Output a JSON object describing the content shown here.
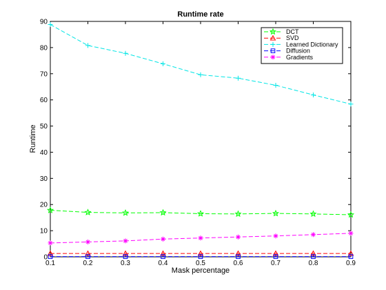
{
  "chart_data": {
    "type": "line",
    "title": "Runtime rate",
    "xlabel": "Mask percentage",
    "ylabel": "Runtime",
    "xlim": [
      0.1,
      0.9
    ],
    "ylim": [
      0,
      90
    ],
    "xticks": [
      "0.1",
      "0.2",
      "0.3",
      "0.4",
      "0.5",
      "0.6",
      "0.7",
      "0.8",
      "0.9"
    ],
    "yticks": [
      "0",
      "10",
      "20",
      "30",
      "40",
      "50",
      "60",
      "70",
      "80",
      "90"
    ],
    "grid": false,
    "legend_position": "top-right",
    "x": [
      0.1,
      0.2,
      0.3,
      0.4,
      0.5,
      0.6,
      0.7,
      0.8,
      0.9
    ],
    "series": [
      {
        "name": "DCT",
        "color": "#00ff00",
        "marker": "star",
        "values": [
          17.8,
          17.0,
          16.8,
          16.9,
          16.5,
          16.4,
          16.6,
          16.4,
          16.1
        ]
      },
      {
        "name": "SVD",
        "color": "#ff0000",
        "marker": "triangle",
        "values": [
          1.3,
          1.3,
          1.3,
          1.3,
          1.3,
          1.3,
          1.3,
          1.3,
          1.3
        ]
      },
      {
        "name": "Learned Dictionary",
        "color": "#00e5e5",
        "marker": "plus",
        "values": [
          88.8,
          80.8,
          77.8,
          73.8,
          69.6,
          68.3,
          65.6,
          61.9,
          58.4
        ]
      },
      {
        "name": "Diffusion",
        "color": "#0000ff",
        "marker": "square",
        "values": [
          0.1,
          0.1,
          0.1,
          0.1,
          0.1,
          0.1,
          0.1,
          0.1,
          0.1
        ]
      },
      {
        "name": "Gradients",
        "color": "#ff00ff",
        "marker": "asterisk",
        "values": [
          5.3,
          5.7,
          6.1,
          6.8,
          7.2,
          7.6,
          8.0,
          8.5,
          9.0
        ]
      }
    ]
  }
}
